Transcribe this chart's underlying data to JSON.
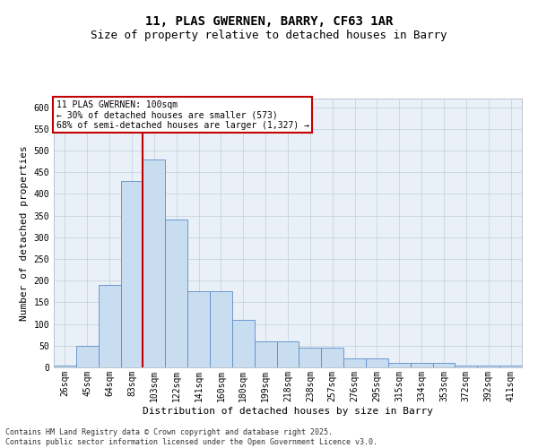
{
  "title": "11, PLAS GWERNEN, BARRY, CF63 1AR",
  "subtitle": "Size of property relative to detached houses in Barry",
  "xlabel": "Distribution of detached houses by size in Barry",
  "ylabel": "Number of detached properties",
  "categories": [
    "26sqm",
    "45sqm",
    "64sqm",
    "83sqm",
    "103sqm",
    "122sqm",
    "141sqm",
    "160sqm",
    "180sqm",
    "199sqm",
    "218sqm",
    "238sqm",
    "257sqm",
    "276sqm",
    "295sqm",
    "315sqm",
    "334sqm",
    "353sqm",
    "372sqm",
    "392sqm",
    "411sqm"
  ],
  "values": [
    5,
    50,
    190,
    430,
    480,
    340,
    175,
    175,
    110,
    60,
    60,
    45,
    45,
    20,
    20,
    10,
    10,
    10,
    5,
    5,
    5
  ],
  "bar_color": "#c9ddf0",
  "bar_edge_color": "#5b8dc8",
  "vline_x_index": 4,
  "vline_color": "#c00000",
  "property_line_label": "11 PLAS GWERNEN: 100sqm",
  "annotation_line2": "← 30% of detached houses are smaller (573)",
  "annotation_line3": "68% of semi-detached houses are larger (1,327) →",
  "annotation_box_color": "#c00000",
  "ylim": [
    0,
    620
  ],
  "yticks": [
    0,
    50,
    100,
    150,
    200,
    250,
    300,
    350,
    400,
    450,
    500,
    550,
    600
  ],
  "grid_color": "#c8d4e0",
  "bg_color": "#eaf0f8",
  "footer": "Contains HM Land Registry data © Crown copyright and database right 2025.\nContains public sector information licensed under the Open Government Licence v3.0.",
  "title_fontsize": 10,
  "subtitle_fontsize": 9,
  "axis_label_fontsize": 8,
  "tick_fontsize": 7,
  "footer_fontsize": 6
}
